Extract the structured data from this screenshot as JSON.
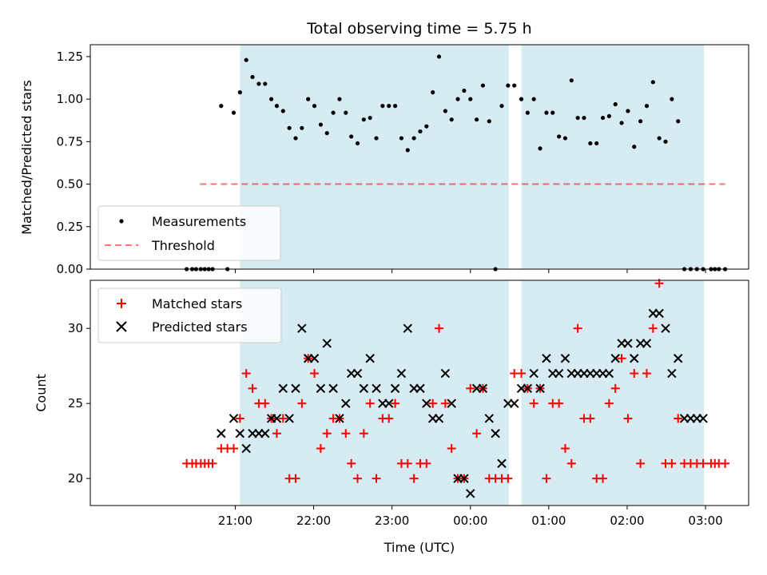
{
  "colors": {
    "shade": "#add8e6",
    "matched": "#ff0000",
    "predicted": "#000000",
    "measurement": "#000000",
    "threshold": "#ff0000"
  },
  "chart_data": [
    {
      "type": "scatter",
      "title": "Total observing time = 5.75 h",
      "ylabel": "Matched/Predicted stars",
      "xlabel": "",
      "ylim": [
        0,
        1.32
      ],
      "yticks": [
        0.0,
        0.25,
        0.5,
        0.75,
        1.0,
        1.25
      ],
      "ytick_labels": [
        "0.00",
        "0.25",
        "0.50",
        "0.75",
        "1.00",
        "1.25"
      ],
      "x_units": "hours after 20:00 UTC",
      "shaded_spans": [
        [
          1.06,
          4.49
        ],
        [
          4.65,
          6.98
        ]
      ],
      "legend": {
        "position": "lower-left",
        "entries": [
          "Measurements",
          "Threshold"
        ]
      },
      "threshold": {
        "name": "Threshold",
        "y": 0.5,
        "x_range": [
          0.55,
          7.25
        ]
      },
      "series": [
        {
          "name": "Measurements",
          "x": [
            0.38,
            0.45,
            0.5,
            0.56,
            0.61,
            0.66,
            0.71,
            0.82,
            0.9,
            0.98,
            1.06,
            1.14,
            1.22,
            1.3,
            1.38,
            1.46,
            1.53,
            1.61,
            1.69,
            1.77,
            1.85,
            1.93,
            2.01,
            2.09,
            2.17,
            2.25,
            2.33,
            2.41,
            2.48,
            2.56,
            2.64,
            2.72,
            2.8,
            2.88,
            2.96,
            3.04,
            3.12,
            3.2,
            3.28,
            3.36,
            3.44,
            3.52,
            3.6,
            3.68,
            3.76,
            3.84,
            3.92,
            4.0,
            4.08,
            4.16,
            4.24,
            4.32,
            4.4,
            4.48,
            4.56,
            4.65,
            4.73,
            4.81,
            4.89,
            4.97,
            5.05,
            5.13,
            5.21,
            5.29,
            5.37,
            5.45,
            5.53,
            5.61,
            5.69,
            5.77,
            5.85,
            5.93,
            6.01,
            6.09,
            6.17,
            6.25,
            6.33,
            6.41,
            6.49,
            6.57,
            6.65,
            6.73,
            6.81,
            6.89,
            6.97,
            7.07,
            7.12,
            7.17,
            7.25
          ],
          "y": [
            0,
            0,
            0,
            0,
            0,
            0,
            0,
            0.96,
            0,
            0.92,
            1.04,
            1.23,
            1.13,
            1.09,
            1.09,
            1.0,
            0.96,
            0.93,
            0.83,
            0.77,
            0.83,
            1.0,
            0.96,
            0.85,
            0.8,
            0.92,
            1.0,
            0.92,
            0.78,
            0.74,
            0.88,
            0.89,
            0.77,
            0.96,
            0.96,
            0.96,
            0.77,
            0.7,
            0.77,
            0.81,
            0.84,
            1.04,
            1.25,
            0.93,
            0.88,
            1.0,
            1.05,
            1.0,
            0.88,
            1.08,
            0.87,
            0,
            0.96,
            1.08,
            1.08,
            1.0,
            0.92,
            1.0,
            0.71,
            0.92,
            0.92,
            0.78,
            0.77,
            1.11,
            0.89,
            0.89,
            0.74,
            0.74,
            0.89,
            0.9,
            0.97,
            0.86,
            0.93,
            0.72,
            0.87,
            0.96,
            1.1,
            0.77,
            0.75,
            1.0,
            0.87,
            0,
            0,
            0,
            0,
            0,
            0,
            0,
            0
          ]
        }
      ]
    },
    {
      "type": "scatter",
      "title": "",
      "ylabel": "Count",
      "xlabel": "Time (UTC)",
      "ylim": [
        18.2,
        33.2
      ],
      "yticks": [
        20,
        25,
        30
      ],
      "ytick_labels": [
        "20",
        "25",
        "30"
      ],
      "x_units": "hours after 20:00 UTC",
      "xlim": [
        -0.85,
        7.55
      ],
      "xticks": [
        1,
        2,
        3,
        4,
        5,
        6,
        7
      ],
      "xtick_labels": [
        "21:00",
        "22:00",
        "23:00",
        "00:00",
        "01:00",
        "02:00",
        "03:00"
      ],
      "shaded_spans": [
        [
          1.06,
          4.49
        ],
        [
          4.65,
          6.98
        ]
      ],
      "legend": {
        "position": "top-left",
        "entries": [
          "Matched stars",
          "Predicted stars"
        ]
      },
      "series": [
        {
          "name": "Matched stars",
          "x": [
            0.38,
            0.45,
            0.5,
            0.56,
            0.61,
            0.66,
            0.71,
            0.82,
            0.9,
            0.98,
            1.06,
            1.14,
            1.22,
            1.3,
            1.38,
            1.46,
            1.53,
            1.61,
            1.69,
            1.77,
            1.85,
            1.93,
            2.01,
            2.09,
            2.17,
            2.25,
            2.33,
            2.41,
            2.48,
            2.56,
            2.64,
            2.72,
            2.8,
            2.88,
            2.96,
            3.04,
            3.12,
            3.2,
            3.28,
            3.36,
            3.44,
            3.52,
            3.6,
            3.68,
            3.76,
            3.84,
            3.92,
            4.0,
            4.08,
            4.16,
            4.24,
            4.32,
            4.4,
            4.48,
            4.56,
            4.65,
            4.73,
            4.81,
            4.89,
            4.97,
            5.05,
            5.13,
            5.21,
            5.29,
            5.37,
            5.45,
            5.53,
            5.61,
            5.69,
            5.77,
            5.85,
            5.93,
            6.01,
            6.09,
            6.17,
            6.25,
            6.33,
            6.41,
            6.49,
            6.57,
            6.65,
            6.73,
            6.81,
            6.89,
            6.97,
            7.07,
            7.12,
            7.17,
            7.25
          ],
          "y": [
            21,
            21,
            21,
            21,
            21,
            21,
            21,
            22,
            22,
            22,
            24,
            27,
            26,
            25,
            25,
            24,
            23,
            24,
            20,
            20,
            25,
            28,
            27,
            22,
            23,
            24,
            24,
            23,
            21,
            20,
            23,
            25,
            20,
            24,
            24,
            25,
            21,
            21,
            20,
            21,
            21,
            25,
            30,
            25,
            22,
            20,
            20,
            26,
            23,
            26,
            20,
            20,
            20,
            20,
            27,
            27,
            26,
            25,
            26,
            20,
            25,
            25,
            22,
            21,
            30,
            24,
            24,
            20,
            20,
            25,
            26,
            28,
            24,
            27,
            21,
            27,
            30,
            33,
            21,
            21,
            24,
            21,
            21,
            21,
            21,
            21,
            21,
            21,
            21
          ]
        },
        {
          "name": "Predicted stars",
          "x": [
            0.82,
            0.98,
            1.06,
            1.14,
            1.22,
            1.3,
            1.38,
            1.46,
            1.53,
            1.61,
            1.69,
            1.77,
            1.85,
            1.93,
            2.01,
            2.09,
            2.17,
            2.25,
            2.33,
            2.41,
            2.48,
            2.56,
            2.64,
            2.72,
            2.8,
            2.88,
            2.96,
            3.04,
            3.12,
            3.2,
            3.28,
            3.36,
            3.44,
            3.52,
            3.6,
            3.68,
            3.76,
            3.84,
            3.92,
            4.0,
            4.08,
            4.16,
            4.24,
            4.32,
            4.4,
            4.48,
            4.56,
            4.65,
            4.73,
            4.81,
            4.89,
            4.97,
            5.05,
            5.13,
            5.21,
            5.29,
            5.37,
            5.45,
            5.53,
            5.61,
            5.69,
            5.77,
            5.85,
            5.93,
            6.01,
            6.09,
            6.17,
            6.25,
            6.33,
            6.41,
            6.49,
            6.57,
            6.65,
            6.73,
            6.81,
            6.89,
            6.97
          ],
          "y": [
            23,
            24,
            23,
            22,
            23,
            23,
            23,
            24,
            24,
            26,
            24,
            26,
            30,
            28,
            28,
            26,
            29,
            26,
            24,
            25,
            27,
            27,
            26,
            28,
            26,
            25,
            25,
            26,
            27,
            30,
            26,
            26,
            25,
            24,
            24,
            27,
            25,
            20,
            20,
            19,
            26,
            26,
            24,
            23,
            21,
            25,
            25,
            26,
            26,
            27,
            26,
            28,
            27,
            27,
            28,
            27,
            27,
            27,
            27,
            27,
            27,
            27,
            28,
            29,
            29,
            28,
            29,
            29,
            31,
            31,
            30,
            27,
            28,
            24,
            24,
            24,
            24
          ]
        }
      ]
    }
  ]
}
